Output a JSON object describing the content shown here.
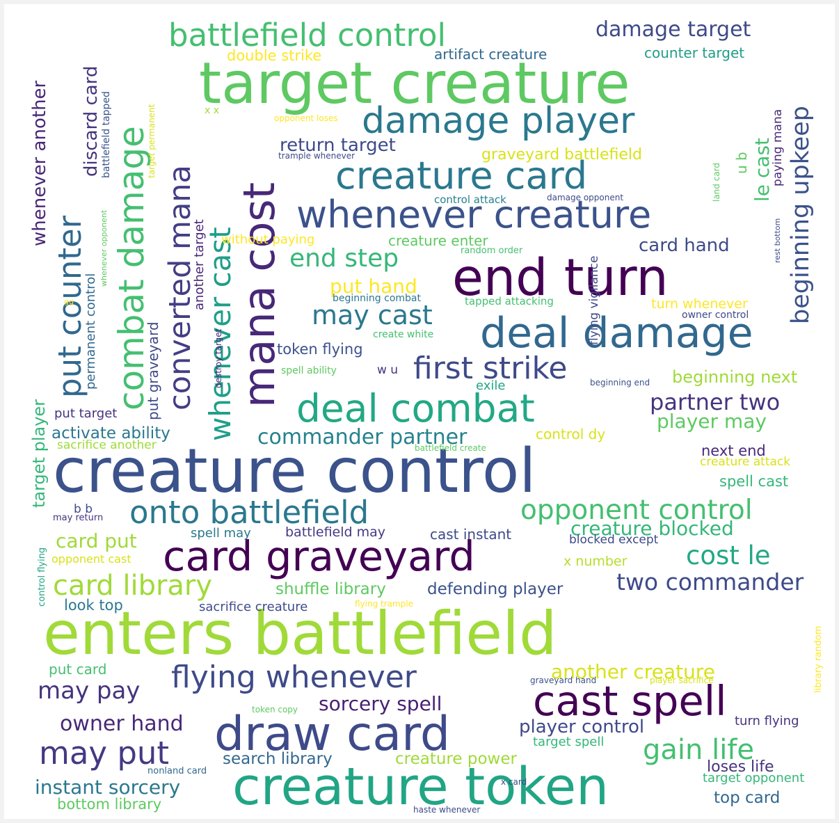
{
  "words": [
    {
      "text": "target creature",
      "color": "#5ec962"
    },
    {
      "text": "creature control",
      "color": "#3b528b"
    },
    {
      "text": "enters battlefield",
      "color": "#a0da39"
    },
    {
      "text": "end turn",
      "color": "#440154"
    },
    {
      "text": "mana cost",
      "color": "#482878"
    },
    {
      "text": "creature token",
      "color": "#21a585"
    },
    {
      "text": "draw card",
      "color": "#3e4a89"
    },
    {
      "text": "card graveyard",
      "color": "#440154"
    },
    {
      "text": "deal damage",
      "color": "#31688e"
    },
    {
      "text": "cast spell",
      "color": "#440154"
    },
    {
      "text": "whenever creature",
      "color": "#3b528b"
    },
    {
      "text": "creature card",
      "color": "#2a788e"
    },
    {
      "text": "deal combat",
      "color": "#22a884"
    },
    {
      "text": "damage player",
      "color": "#2a788e"
    },
    {
      "text": "combat damage",
      "color": "#44bf70"
    },
    {
      "text": "put counter",
      "color": "#31688e"
    },
    {
      "text": "onto battlefield",
      "color": "#2a788e"
    },
    {
      "text": "battlefield control",
      "color": "#44bf70"
    },
    {
      "text": "flying whenever",
      "color": "#3e4a89"
    },
    {
      "text": "converted mana",
      "color": "#433e85"
    },
    {
      "text": "first strike",
      "color": "#3e4a89"
    },
    {
      "text": "opponent control",
      "color": "#44bf70"
    },
    {
      "text": "whenever cast",
      "color": "#1f9e89"
    },
    {
      "text": "may put",
      "color": "#443983"
    },
    {
      "text": "card library",
      "color": "#a0da39"
    },
    {
      "text": "gain life",
      "color": "#44bf70"
    },
    {
      "text": "beginning upkeep",
      "color": "#3b528b"
    },
    {
      "text": "may cast",
      "color": "#2a788e"
    },
    {
      "text": "end step",
      "color": "#35b779"
    },
    {
      "text": "may pay",
      "color": "#46337e"
    },
    {
      "text": "cost le",
      "color": "#22a884"
    },
    {
      "text": "two commander",
      "color": "#3e4a89"
    },
    {
      "text": "partner two",
      "color": "#46337e"
    },
    {
      "text": "instant sorcery",
      "color": "#2a788e"
    },
    {
      "text": "commander partner",
      "color": "#26828e"
    },
    {
      "text": "owner hand",
      "color": "#482878"
    },
    {
      "text": "creature blocked",
      "color": "#35b779"
    },
    {
      "text": "another creature",
      "color": "#d8e219"
    },
    {
      "text": "sorcery spell",
      "color": "#481f71"
    },
    {
      "text": "player control",
      "color": "#3e4a89"
    },
    {
      "text": "damage target",
      "color": "#3e4a89"
    },
    {
      "text": "card put",
      "color": "#a0da39"
    },
    {
      "text": "put hand",
      "color": "#fde725"
    },
    {
      "text": "card hand",
      "color": "#3e4a89"
    },
    {
      "text": "player may",
      "color": "#5ec962"
    },
    {
      "text": "le cast",
      "color": "#44bf70"
    },
    {
      "text": "return target",
      "color": "#3e4a89"
    },
    {
      "text": "discard card",
      "color": "#46337e"
    },
    {
      "text": "whenever another",
      "color": "#482878"
    },
    {
      "text": "activate ability",
      "color": "#2a788e"
    },
    {
      "text": "shuffle library",
      "color": "#5ec962"
    },
    {
      "text": "defending player",
      "color": "#3b528b"
    },
    {
      "text": "search library",
      "color": "#31688e"
    },
    {
      "text": "creature power",
      "color": "#a0da39"
    },
    {
      "text": "loses life",
      "color": "#46337e"
    },
    {
      "text": "top card",
      "color": "#31688e"
    },
    {
      "text": "bottom library",
      "color": "#5ec962"
    },
    {
      "text": "beginning next",
      "color": "#a0da39"
    },
    {
      "text": "next end",
      "color": "#482878"
    },
    {
      "text": "spell cast",
      "color": "#35b779"
    },
    {
      "text": "look top",
      "color": "#2a788e"
    },
    {
      "text": "put card",
      "color": "#44bf70"
    },
    {
      "text": "target player",
      "color": "#35b779"
    },
    {
      "text": "cast instant",
      "color": "#3e4a89"
    },
    {
      "text": "battlefield may",
      "color": "#443983"
    },
    {
      "text": "spell may",
      "color": "#2a788e"
    },
    {
      "text": "graveyard battlefield",
      "color": "#d8e219"
    },
    {
      "text": "counter target",
      "color": "#1f9e89"
    },
    {
      "text": "artifact creature",
      "color": "#31688e"
    },
    {
      "text": "double strike",
      "color": "#fde725"
    },
    {
      "text": "token flying",
      "color": "#3b528b"
    },
    {
      "text": "creature enter",
      "color": "#5ec962"
    },
    {
      "text": "without paying",
      "color": "#fde725"
    },
    {
      "text": "turn whenever",
      "color": "#fde725"
    },
    {
      "text": "put target",
      "color": "#46337e"
    },
    {
      "text": "sacrifice another",
      "color": "#a0da39"
    },
    {
      "text": "control dy",
      "color": "#d8e219"
    },
    {
      "text": "sacrifice creature",
      "color": "#3e4a89"
    },
    {
      "text": "x number",
      "color": "#b5de2b"
    },
    {
      "text": "blocked except",
      "color": "#3e4a89"
    },
    {
      "text": "opponent cast",
      "color": "#d8e219"
    },
    {
      "text": "target spell",
      "color": "#35b779"
    },
    {
      "text": "target opponent",
      "color": "#35b779"
    },
    {
      "text": "turn flying",
      "color": "#46337e"
    },
    {
      "text": "creature attack",
      "color": "#d8e219"
    },
    {
      "text": "exile",
      "color": "#21a585"
    },
    {
      "text": "put graveyard",
      "color": "#3e4a89"
    },
    {
      "text": "permanent control",
      "color": "#31688e"
    },
    {
      "text": "another target",
      "color": "#482878"
    },
    {
      "text": "flying vigilance",
      "color": "#3e4a89"
    },
    {
      "text": "paying mana",
      "color": "#482878"
    },
    {
      "text": "battlefield tapped",
      "color": "#3b528b"
    },
    {
      "text": "u b",
      "color": "#5ec962"
    },
    {
      "text": "b b",
      "color": "#3e4a89"
    },
    {
      "text": "w u",
      "color": "#46337e"
    },
    {
      "text": "x x",
      "color": "#a0da39"
    },
    {
      "text": "control attack",
      "color": "#26828e"
    },
    {
      "text": "damage opponent",
      "color": "#3e4a89"
    },
    {
      "text": "beginning combat",
      "color": "#2a788e"
    },
    {
      "text": "tapped attacking",
      "color": "#44bf70"
    },
    {
      "text": "owner control",
      "color": "#3e4a89"
    },
    {
      "text": "create white",
      "color": "#44bf70"
    },
    {
      "text": "spell ability",
      "color": "#5ec962"
    },
    {
      "text": "trample whenever",
      "color": "#3e4a89"
    },
    {
      "text": "opponent loses",
      "color": "#fde725"
    },
    {
      "text": "target permanent",
      "color": "#d8e219"
    },
    {
      "text": "random order",
      "color": "#44bf70"
    },
    {
      "text": "beginning end",
      "color": "#3b528b"
    },
    {
      "text": "battlefield create",
      "color": "#5ec962"
    },
    {
      "text": "may return",
      "color": "#46337e"
    },
    {
      "text": "destroy target",
      "color": "#482878"
    },
    {
      "text": "land card",
      "color": "#5ec962"
    },
    {
      "text": "rest bottom",
      "color": "#3e4a89"
    },
    {
      "text": "whenever opponent",
      "color": "#5ec962"
    },
    {
      "text": "control flying",
      "color": "#21a585"
    },
    {
      "text": "flying trample",
      "color": "#fde725"
    },
    {
      "text": "graveyard hand",
      "color": "#3b528b"
    },
    {
      "text": "player sacrifice",
      "color": "#d8e219"
    },
    {
      "text": "token copy",
      "color": "#5ec962"
    },
    {
      "text": "nonland card",
      "color": "#31688e"
    },
    {
      "text": "x card",
      "color": "#3e4a89"
    },
    {
      "text": "haste whenever",
      "color": "#3e4a89"
    },
    {
      "text": "library random",
      "color": "#fde725"
    },
    {
      "text": "gg",
      "color": "#fde725"
    }
  ]
}
